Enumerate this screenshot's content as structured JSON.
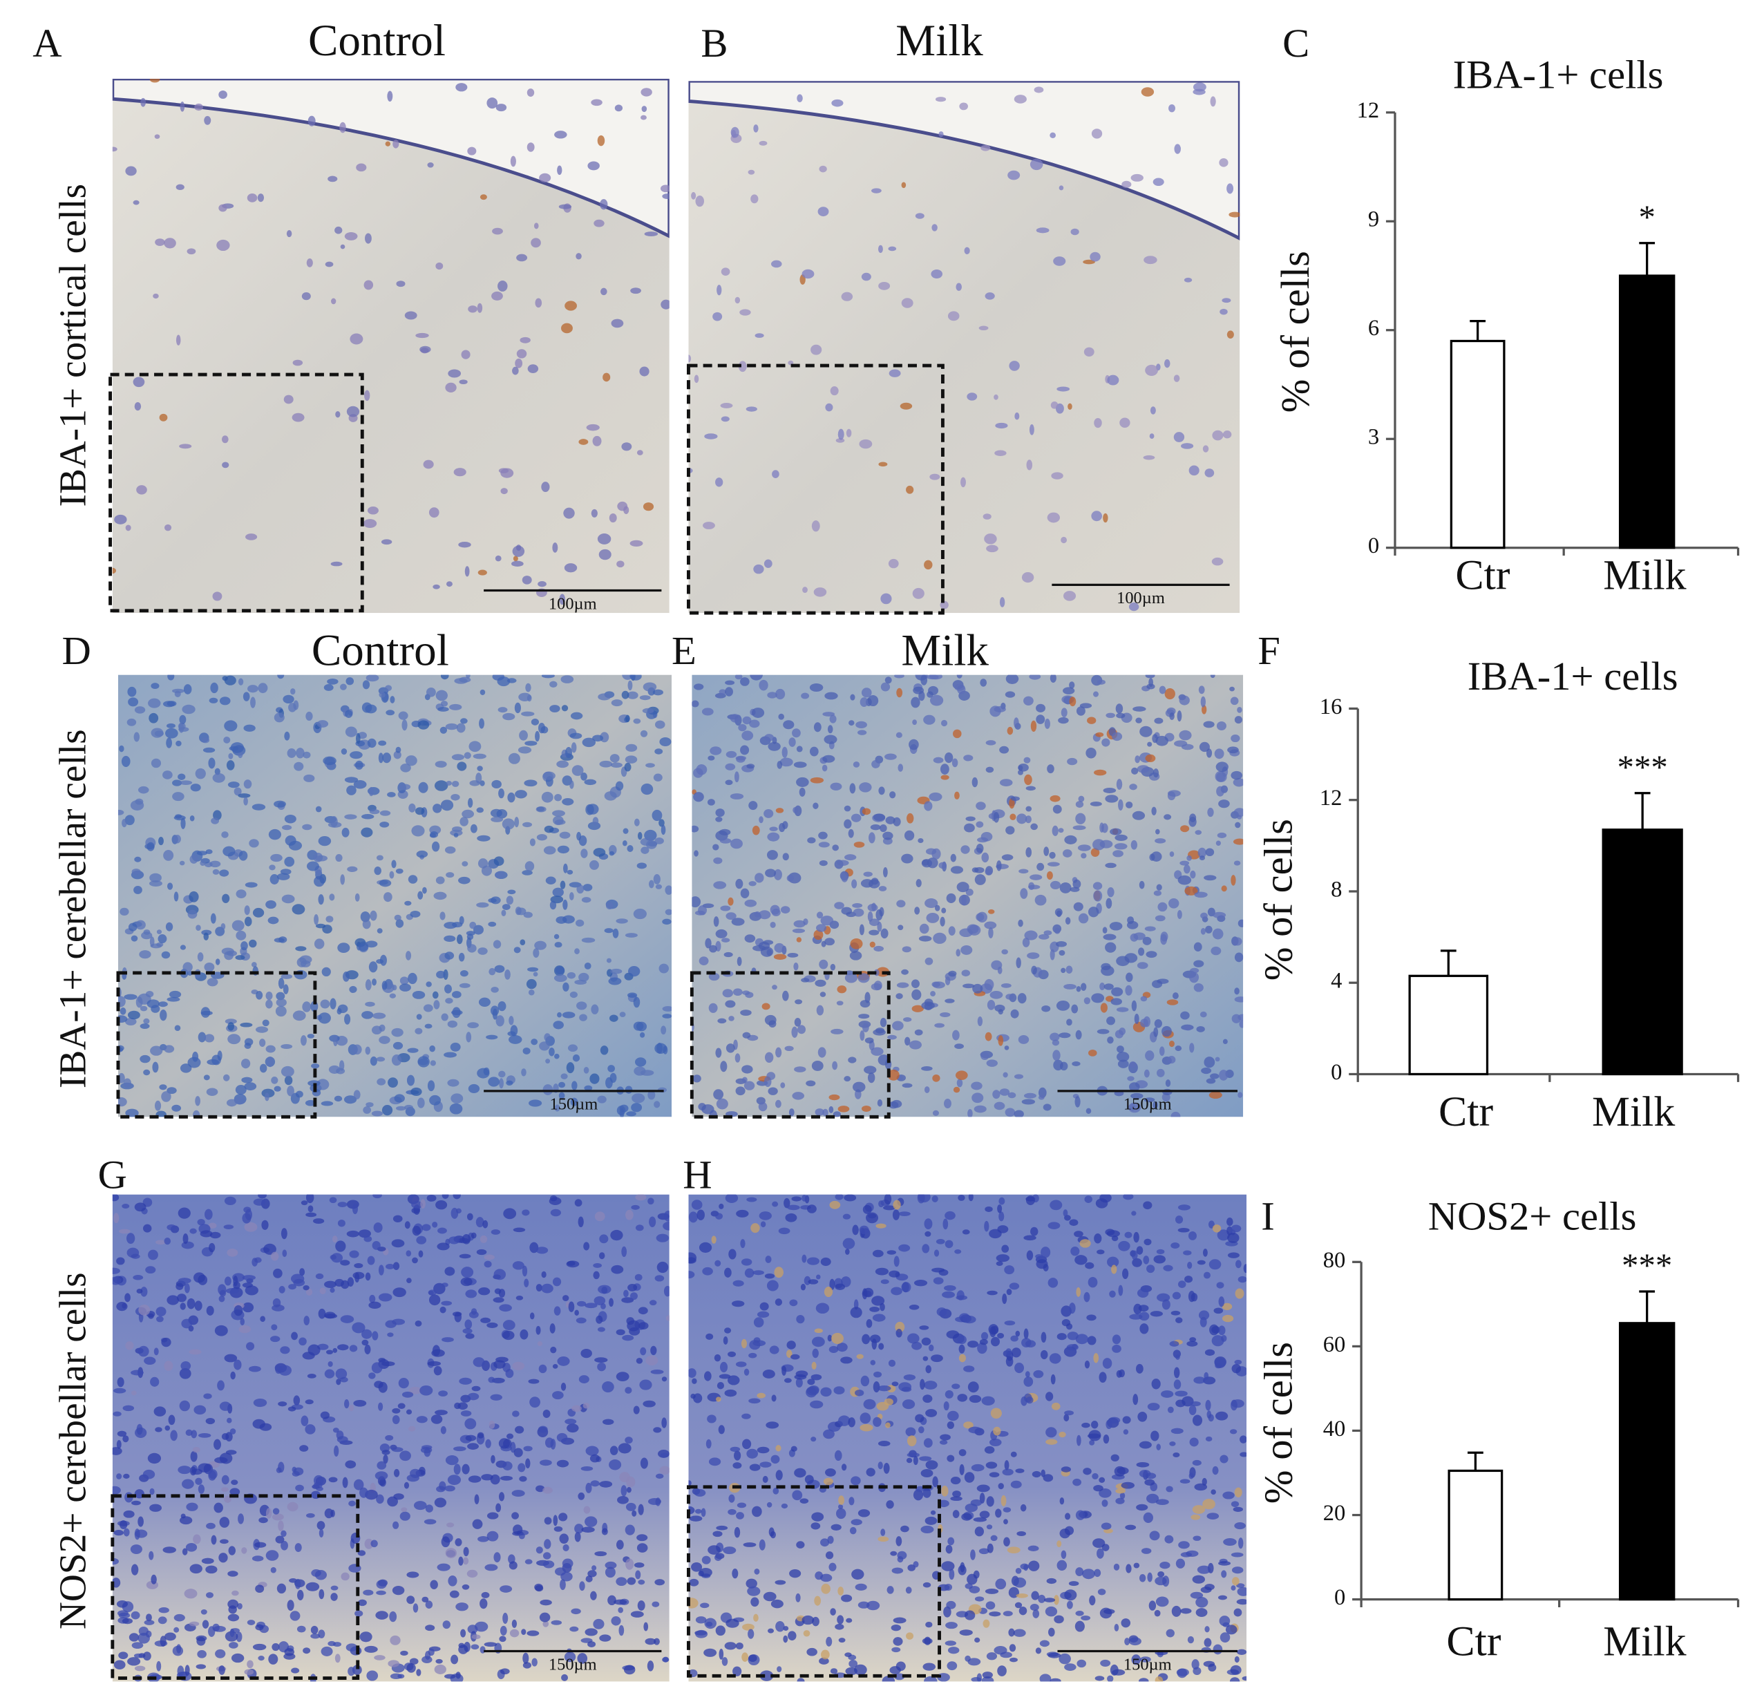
{
  "panels": [
    {
      "letter": "A",
      "title": "Control",
      "scale_bar": "100µm"
    },
    {
      "letter": "B",
      "title": "Milk",
      "scale_bar": "100µm"
    },
    {
      "letter": "D",
      "title": "Control",
      "scale_bar": "150µm"
    },
    {
      "letter": "E",
      "title": "Milk",
      "scale_bar": "150µm"
    },
    {
      "letter": "G",
      "scale_bar": "150µm"
    },
    {
      "letter": "H",
      "scale_bar": "150µm"
    }
  ],
  "row_labels": [
    "IBA-1+ cortical cells",
    "IBA-1+ cerebellar cells",
    "NOS2+ cerebellar cells"
  ],
  "chart_data": [
    {
      "type": "bar",
      "panel": "C",
      "title": "IBA-1+ cells",
      "y_label": "% of cells",
      "categories": [
        "Ctr",
        "Milk"
      ],
      "values": [
        5.7,
        7.5
      ],
      "errors": [
        0.55,
        0.9
      ],
      "colors": [
        "#ffffff",
        "#000000"
      ],
      "ylim": [
        0,
        12
      ],
      "yticks": [
        0,
        3,
        6,
        9,
        12
      ],
      "annotations": [
        {
          "x": "Milk",
          "text": "*"
        }
      ]
    },
    {
      "type": "bar",
      "panel": "F",
      "title": "IBA-1+ cells",
      "y_label": "% of cells",
      "categories": [
        "Ctr",
        "Milk"
      ],
      "values": [
        4.3,
        10.7
      ],
      "errors": [
        1.1,
        1.6
      ],
      "colors": [
        "#ffffff",
        "#000000"
      ],
      "ylim": [
        0,
        16
      ],
      "yticks": [
        0,
        4,
        8,
        12,
        16
      ],
      "annotations": [
        {
          "x": "Milk",
          "text": "***"
        }
      ]
    },
    {
      "type": "bar",
      "panel": "I",
      "title": "NOS2+ cells",
      "y_label": "% of cells",
      "categories": [
        "Ctr",
        "Milk"
      ],
      "values": [
        30.5,
        65.5
      ],
      "errors": [
        4.3,
        7.5
      ],
      "colors": [
        "#ffffff",
        "#000000"
      ],
      "ylim": [
        0,
        80
      ],
      "yticks": [
        0,
        20,
        40,
        60,
        80
      ],
      "annotations": [
        {
          "x": "Milk",
          "text": "***"
        }
      ]
    }
  ]
}
